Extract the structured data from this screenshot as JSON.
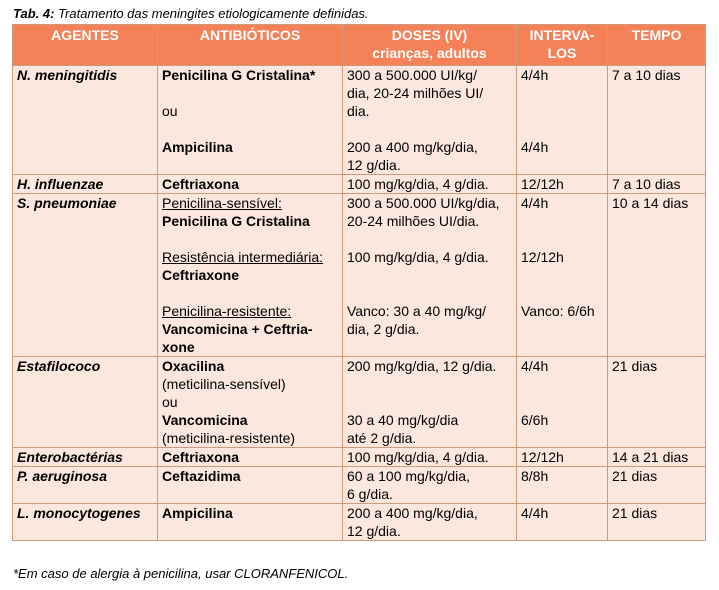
{
  "caption": {
    "label": "Tab. 4:",
    "text": "Tratamento das meningites etiologicamente definidas."
  },
  "header": {
    "agentes": "AGENTES",
    "antibioticos": "ANTIBIÓTICOS",
    "doses_line1": "DOSES (IV)",
    "doses_line2": "crianças, adultos",
    "intervalos_line1": "INTERVA-",
    "intervalos_line2": "LOS",
    "tempo": "TEMPO"
  },
  "rows": [
    {
      "agent": "N. meningitidis",
      "antibiotics": [
        {
          "text": "Penicilina G Cristalina*",
          "style": "bold"
        },
        {
          "text": "",
          "style": "normal"
        },
        {
          "text": "ou",
          "style": "normal"
        },
        {
          "text": "",
          "style": "normal"
        },
        {
          "text": "Ampicilina",
          "style": "bold"
        },
        {
          "text": "",
          "style": "normal"
        }
      ],
      "doses": [
        "300 a 500.000 UI/kg/",
        "dia, 20-24 milhões UI/",
        "dia.",
        "",
        "200 a 400 mg/kg/dia,",
        "12 g/dia."
      ],
      "intervals": [
        "4/4h",
        "",
        "",
        "",
        "4/4h",
        ""
      ],
      "time": "7 a 10 dias"
    },
    {
      "agent": "H. influenzae",
      "antibiotics": [
        {
          "text": "Ceftriaxona",
          "style": "bold"
        }
      ],
      "doses": [
        "100 mg/kg/dia, 4 g/dia."
      ],
      "intervals": [
        "12/12h"
      ],
      "time": "7 a 10 dias"
    },
    {
      "agent": "S. pneumoniae",
      "antibiotics": [
        {
          "text": "Penicilina-sensível:",
          "style": "underline"
        },
        {
          "text": "Penicilina G Cristalina",
          "style": "bold"
        },
        {
          "text": "",
          "style": "normal"
        },
        {
          "text": "Resistência intermediária:",
          "style": "underline"
        },
        {
          "text": "Ceftriaxone",
          "style": "bold"
        },
        {
          "text": "",
          "style": "normal"
        },
        {
          "text": "Penicilina-resistente:",
          "style": "underline"
        },
        {
          "text": "Vancomicina + Ceftria-",
          "style": "bold"
        },
        {
          "text": "xone",
          "style": "bold"
        }
      ],
      "doses": [
        "300 a 500.000 UI/kg/dia,",
        "20-24 milhões UI/dia.",
        "",
        "100 mg/kg/dia, 4 g/dia.",
        "",
        "",
        "Vanco: 30 a 40 mg/kg/",
        "dia, 2 g/dia.",
        ""
      ],
      "intervals": [
        "4/4h",
        "",
        "",
        "12/12h",
        "",
        "",
        "Vanco: 6/6h",
        "",
        ""
      ],
      "time": "10 a 14 dias"
    },
    {
      "agent": "Estafilococo",
      "antibiotics": [
        {
          "text": "Oxacilina",
          "style": "bold"
        },
        {
          "text": "(meticilina-sensível)",
          "style": "normal"
        },
        {
          "text": "ou",
          "style": "normal"
        },
        {
          "text": "Vancomicina",
          "style": "bold"
        },
        {
          "text": "(meticilina-resistente)",
          "style": "normal"
        }
      ],
      "doses": [
        "200 mg/kg/dia, 12 g/dia.",
        "",
        "",
        "30 a 40 mg/kg/dia",
        "até 2 g/dia."
      ],
      "intervals": [
        "4/4h",
        "",
        "",
        "6/6h",
        ""
      ],
      "time": "21 dias"
    },
    {
      "agent": "Enterobactérias",
      "antibiotics": [
        {
          "text": "Ceftriaxona",
          "style": "bold"
        }
      ],
      "doses": [
        "100 mg/kg/dia, 4 g/dia."
      ],
      "intervals": [
        "12/12h"
      ],
      "time": "14 a 21 dias"
    },
    {
      "agent": "P. aeruginosa",
      "antibiotics": [
        {
          "text": "Ceftazidima",
          "style": "bold"
        }
      ],
      "doses": [
        "60 a 100 mg/kg/dia,",
        "6 g/dia."
      ],
      "intervals": [
        "8/8h"
      ],
      "time": "21 dias"
    },
    {
      "agent": "L. monocytogenes",
      "antibiotics": [
        {
          "text": "Ampicilina",
          "style": "bold"
        }
      ],
      "doses": [
        "200 a 400 mg/kg/dia,",
        "12 g/dia."
      ],
      "intervals": [
        "4/4h"
      ],
      "time": "21 dias"
    }
  ],
  "footnote": "*Em caso de alergia à penicilina, usar CLORANFENICOL."
}
